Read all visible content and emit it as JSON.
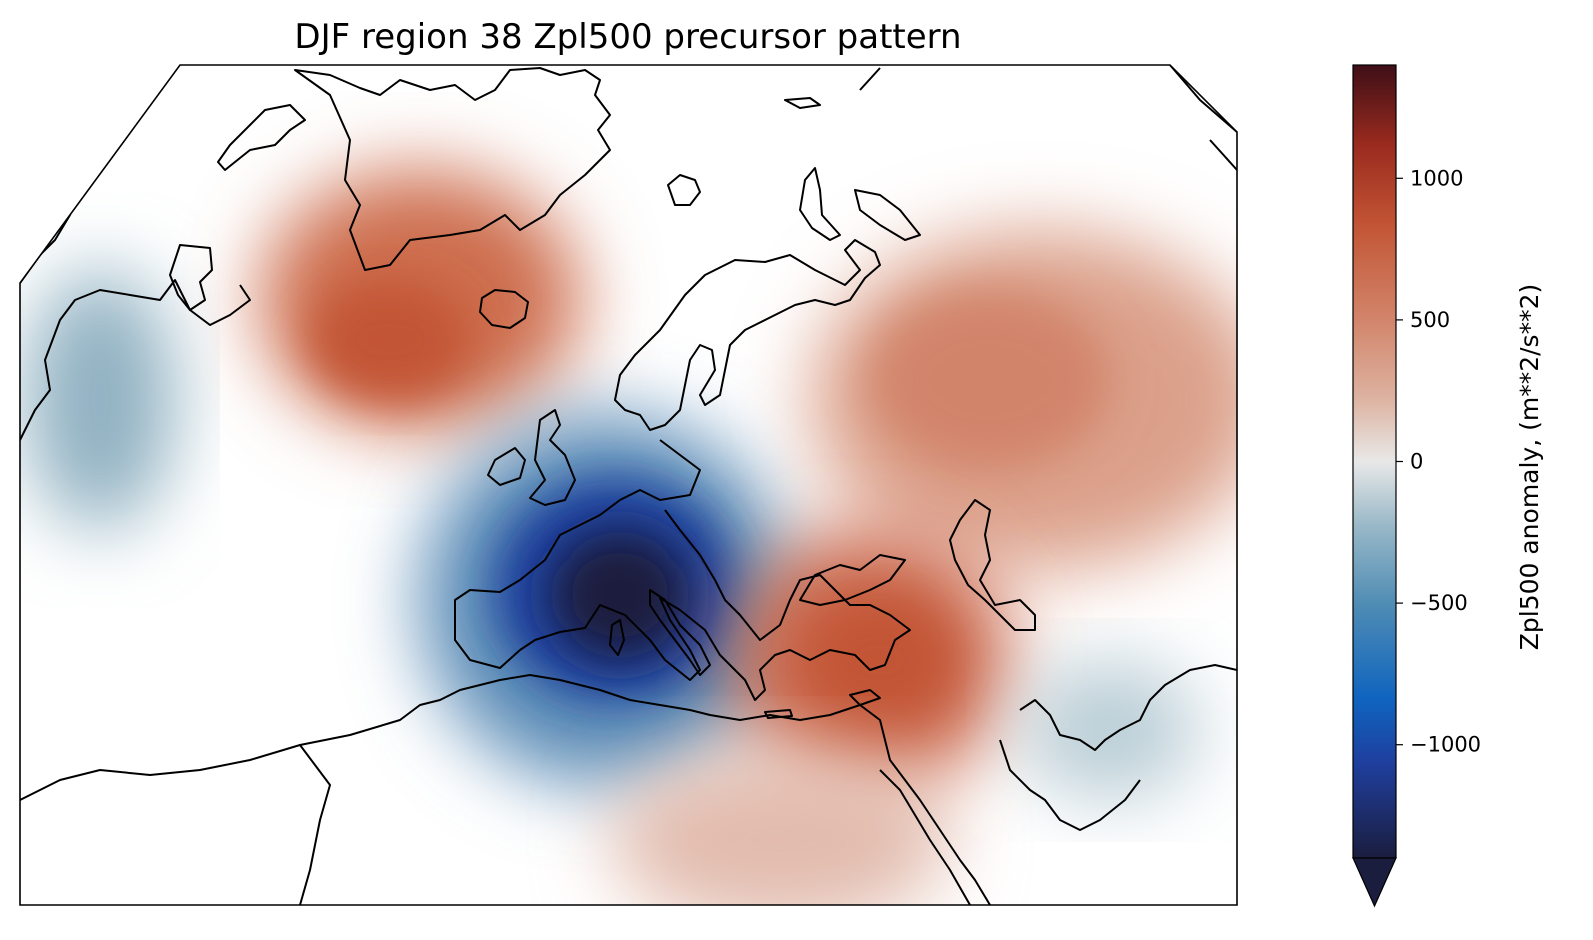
{
  "title": "DJF region 38 Zpl500 precursor pattern",
  "colorbar": {
    "label": "Zpl500 anomaly, (m**2/s**2)",
    "ticks": [
      {
        "value": 1000,
        "label": "1000"
      },
      {
        "value": 500,
        "label": "500"
      },
      {
        "value": 0,
        "label": "0"
      },
      {
        "value": -500,
        "label": "−500"
      },
      {
        "value": -1000,
        "label": "−1000"
      }
    ],
    "range": [
      -1400,
      1400
    ],
    "extend": "min",
    "colors": [
      "#1a1d3e",
      "#1f3f9e",
      "#0f64bf",
      "#4f8cb4",
      "#9ab9c8",
      "#e8e8e8",
      "#ddb2a0",
      "#d2846a",
      "#c25434",
      "#9a2a1e",
      "#3e0f17"
    ]
  },
  "chart_data": {
    "type": "heatmap",
    "title": "DJF region 38 Zpl500 precursor pattern",
    "colorbar_label": "Zpl500 anomaly, (m**2/s**2)",
    "value_range": [
      -1400,
      1400
    ],
    "anomalies": [
      {
        "region": "Western Mediterranean / Italy",
        "sign": "negative",
        "peak_value": -1350
      },
      {
        "region": "Eastern Mediterranean / Turkey",
        "sign": "positive",
        "peak_value": 800
      },
      {
        "region": "Greenland / Iceland",
        "sign": "positive",
        "peak_value": 700
      },
      {
        "region": "Western Russia / Caspian",
        "sign": "positive",
        "peak_value": 500
      },
      {
        "region": "Canada / Hudson Bay",
        "sign": "negative",
        "peak_value": -300
      },
      {
        "region": "Arabian Peninsula",
        "sign": "negative",
        "peak_value": -200
      },
      {
        "region": "North Africa / Sahara",
        "sign": "positive",
        "peak_value": 250
      }
    ]
  }
}
